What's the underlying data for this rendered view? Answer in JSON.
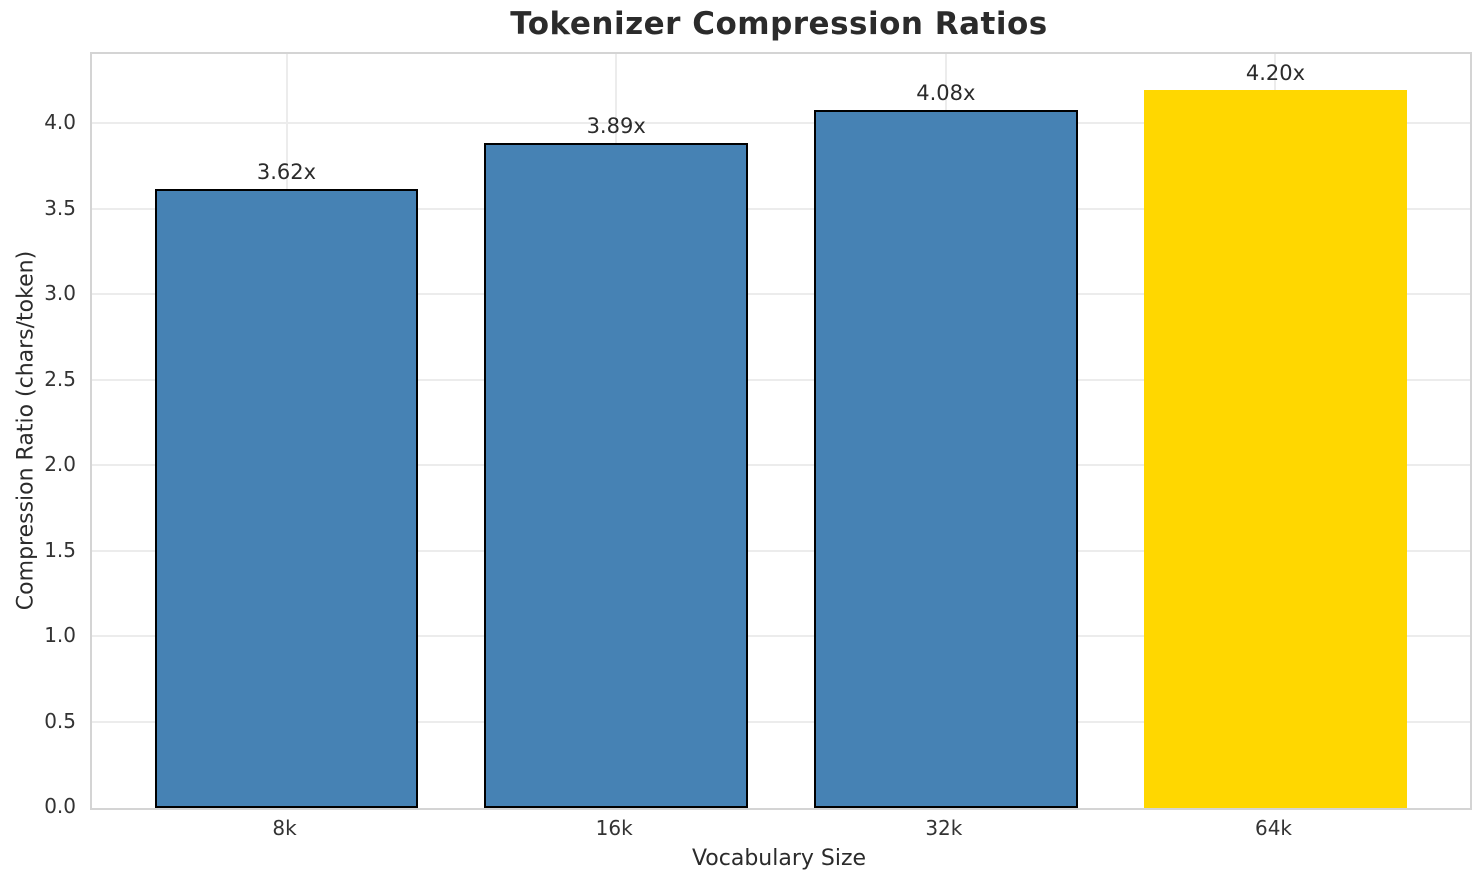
{
  "chart_data": {
    "type": "bar",
    "title": "Tokenizer Compression Ratios",
    "xlabel": "Vocabulary Size",
    "ylabel": "Compression Ratio (chars/token)",
    "categories": [
      "8k",
      "16k",
      "32k",
      "64k"
    ],
    "values": [
      3.62,
      3.89,
      4.08,
      4.2
    ],
    "bar_labels": [
      "3.62x",
      "3.89x",
      "4.08x",
      "4.20x"
    ],
    "bar_colors": [
      "#4682b4",
      "#4682b4",
      "#4682b4",
      "#ffd700"
    ],
    "bar_edge_colors": [
      "#000000",
      "#000000",
      "#000000",
      "none"
    ],
    "ylim": [
      0,
      4.41
    ],
    "yticks": [
      0.0,
      0.5,
      1.0,
      1.5,
      2.0,
      2.5,
      3.0,
      3.5,
      4.0
    ],
    "ytick_labels": [
      "0.0",
      "0.5",
      "1.0",
      "1.5",
      "2.0",
      "2.5",
      "3.0",
      "3.5",
      "4.0"
    ],
    "grid": true,
    "grid_color": "#ececec",
    "spine_color": "#d4d4d4",
    "text_color": "#2b2b2b",
    "legend": "none"
  }
}
